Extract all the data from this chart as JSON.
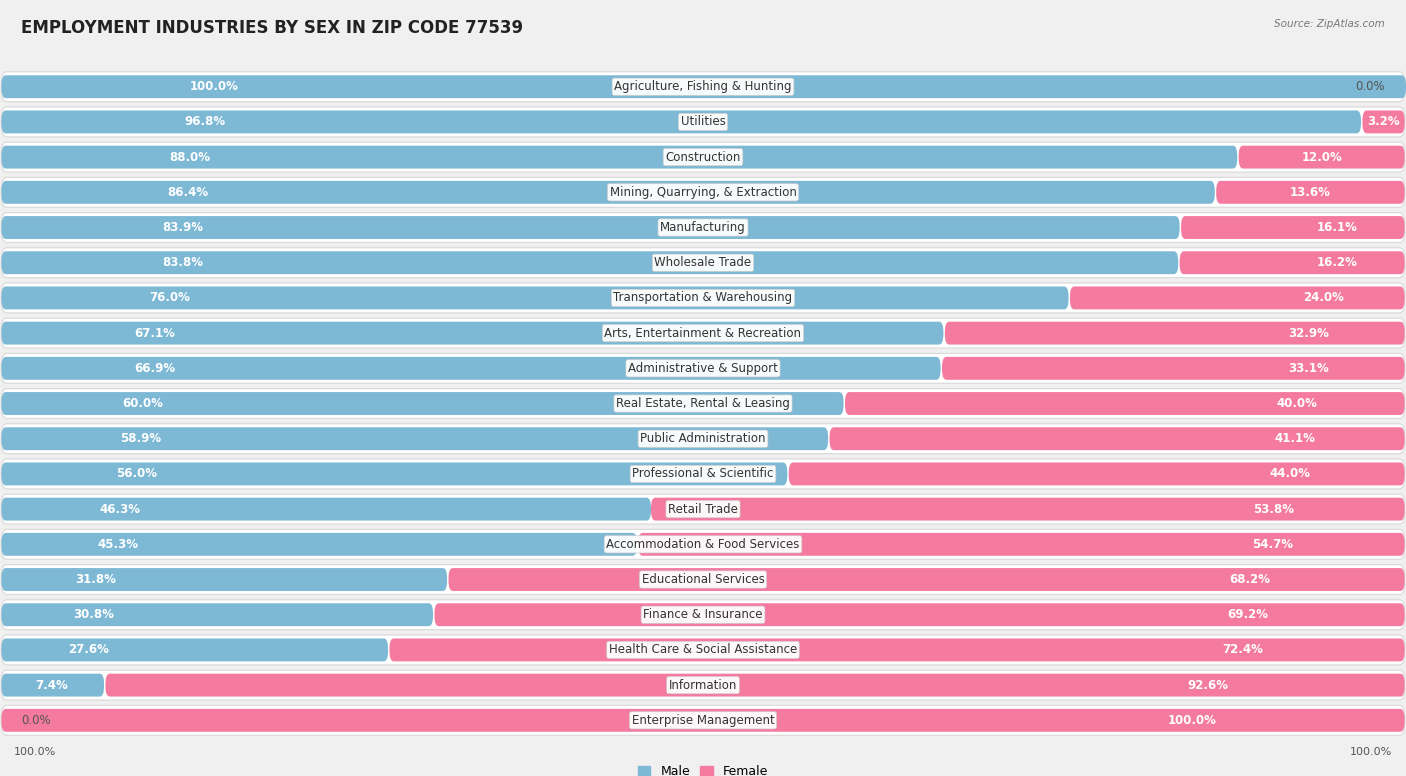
{
  "title": "EMPLOYMENT INDUSTRIES BY SEX IN ZIP CODE 77539",
  "source": "Source: ZipAtlas.com",
  "industries": [
    "Agriculture, Fishing & Hunting",
    "Utilities",
    "Construction",
    "Mining, Quarrying, & Extraction",
    "Manufacturing",
    "Wholesale Trade",
    "Transportation & Warehousing",
    "Arts, Entertainment & Recreation",
    "Administrative & Support",
    "Real Estate, Rental & Leasing",
    "Public Administration",
    "Professional & Scientific",
    "Retail Trade",
    "Accommodation & Food Services",
    "Educational Services",
    "Finance & Insurance",
    "Health Care & Social Assistance",
    "Information",
    "Enterprise Management"
  ],
  "male_pct": [
    100.0,
    96.8,
    88.0,
    86.4,
    83.9,
    83.8,
    76.0,
    67.1,
    66.9,
    60.0,
    58.9,
    56.0,
    46.3,
    45.3,
    31.8,
    30.8,
    27.6,
    7.4,
    0.0
  ],
  "female_pct": [
    0.0,
    3.2,
    12.0,
    13.6,
    16.1,
    16.2,
    24.0,
    32.9,
    33.1,
    40.0,
    41.1,
    44.0,
    53.8,
    54.7,
    68.2,
    69.2,
    72.4,
    92.6,
    100.0
  ],
  "male_color": "#7db8d5",
  "female_color": "#f47aa0",
  "bg_color": "#f0f0f0",
  "row_bg_color": "#ffffff",
  "bar_height": 0.65,
  "title_fontsize": 12,
  "label_fontsize": 8.5,
  "industry_fontsize": 8.5,
  "pct_label_color_inside": "#ffffff",
  "pct_label_color_outside": "#555555"
}
